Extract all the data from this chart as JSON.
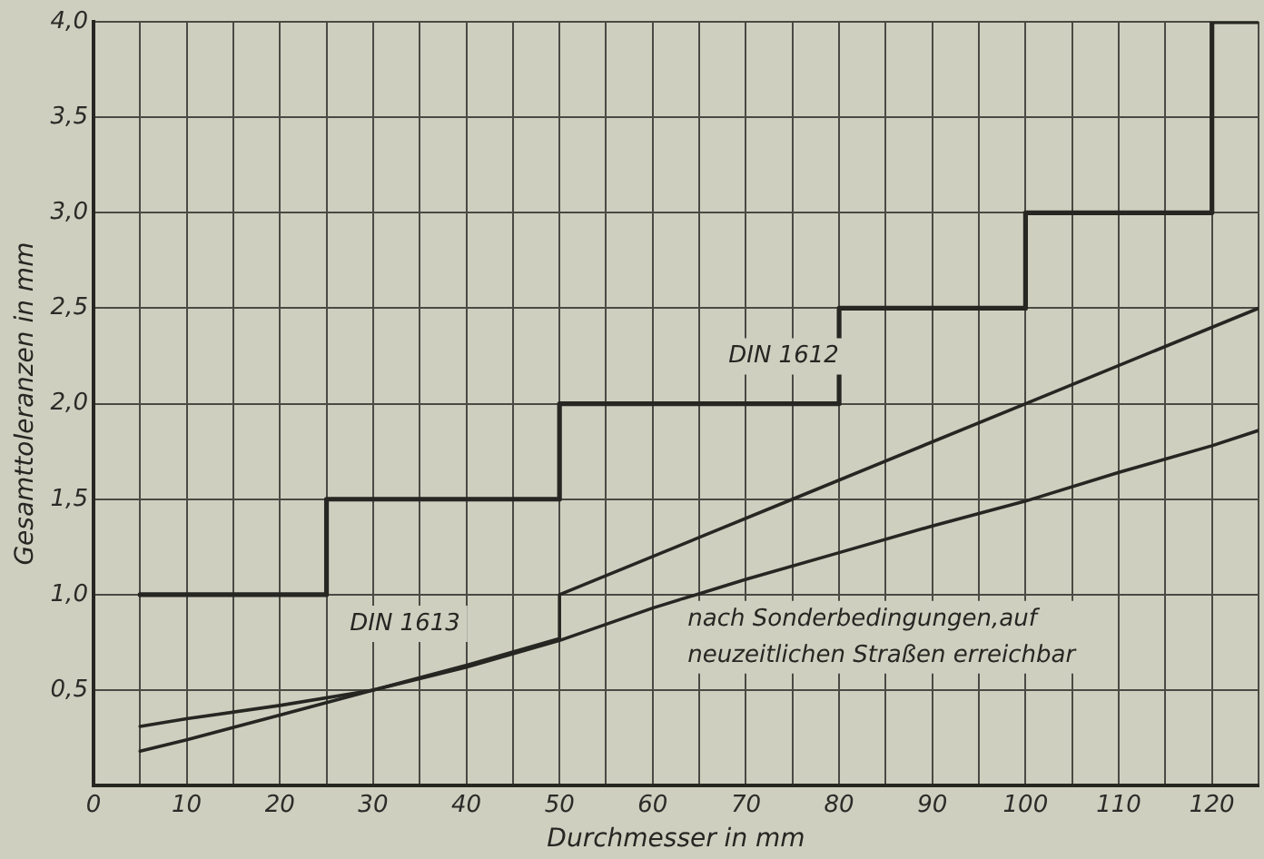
{
  "chart_data": {
    "type": "line",
    "xlabel": "Durchmesser in mm",
    "ylabel": "Gesamttoleranzen in mm",
    "xlim": [
      0,
      125
    ],
    "ylim": [
      0,
      4
    ],
    "xticks": [
      0,
      {
        "value": 5,
        "label": null
      },
      10,
      {
        "value": 15,
        "label": null
      },
      20,
      {
        "value": 25,
        "label": null
      },
      30,
      {
        "value": 35,
        "label": null
      },
      40,
      {
        "value": 45,
        "label": null
      },
      50,
      {
        "value": 55,
        "label": null
      },
      60,
      {
        "value": 65,
        "label": null
      },
      70,
      {
        "value": 75,
        "label": null
      },
      80,
      {
        "value": 85,
        "label": null
      },
      90,
      {
        "value": 95,
        "label": null
      },
      100,
      {
        "value": 105,
        "label": null
      },
      110,
      {
        "value": 115,
        "label": null
      },
      120,
      {
        "value": 125,
        "label": null
      }
    ],
    "yticks": [
      {
        "value": 0,
        "label": null
      },
      {
        "value": 0.5,
        "label": "0,5"
      },
      {
        "value": 1,
        "label": "1,0"
      },
      {
        "value": 1.5,
        "label": "1,5"
      },
      {
        "value": 2,
        "label": "2,0"
      },
      {
        "value": 2.5,
        "label": "2,5"
      },
      {
        "value": 3,
        "label": "3,0"
      },
      {
        "value": 3.5,
        "label": "3,5"
      },
      {
        "value": 4,
        "label": "4,0"
      }
    ],
    "grid": true,
    "legend": false,
    "marker": "none",
    "series": [
      {
        "type": "step",
        "name": "DIN 1612",
        "color": "#262622",
        "x": [
          5,
          25,
          50,
          80,
          100,
          120,
          125
        ],
        "values": [
          1,
          1.5,
          2,
          2.5,
          3,
          4,
          4
        ]
      },
      {
        "name": "DIN 1613",
        "color": "#262622",
        "x": [
          5,
          10,
          20,
          30,
          40,
          50,
          50,
          75,
          100,
          125
        ],
        "values": [
          0.18,
          0.24,
          0.37,
          0.5,
          0.63,
          0.77,
          1,
          1.5,
          2,
          2.5
        ]
      },
      {
        "name": "nach Sonderbedingungen,auf\nneuzeitlichen Straßen erreichbar",
        "color": "#262622",
        "x": [
          5,
          10,
          20,
          30,
          40,
          50,
          60,
          70,
          80,
          90,
          100,
          110,
          120,
          125
        ],
        "values": [
          0.31,
          0.35,
          0.42,
          0.5,
          0.62,
          0.76,
          0.93,
          1.08,
          1.22,
          1.36,
          1.49,
          1.64,
          1.78,
          1.86
        ]
      }
    ]
  }
}
